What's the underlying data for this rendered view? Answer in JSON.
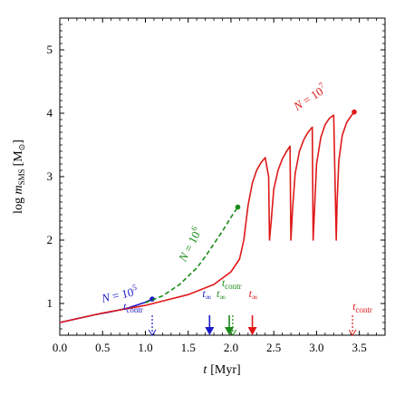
{
  "chart_data": {
    "type": "line",
    "xlabel_var": "t",
    "xlabel_unit": "[Myr]",
    "ylabel_prefix": "log ",
    "ylabel_var": "m",
    "ylabel_sub": "SMS",
    "ylabel_unit": "[M",
    "ylabel_unit_sym": "⊙",
    "ylabel_unit_close": "]",
    "xlim": [
      0.0,
      3.8
    ],
    "ylim": [
      0.5,
      5.5
    ],
    "xticks": [
      "0.0",
      "0.5",
      "1.0",
      "1.5",
      "2.0",
      "2.5",
      "3.0",
      "3.5"
    ],
    "xtick_values": [
      0.0,
      0.5,
      1.0,
      1.5,
      2.0,
      2.5,
      3.0,
      3.5
    ],
    "yticks": [
      "1",
      "2",
      "3",
      "4",
      "5"
    ],
    "ytick_values": [
      1,
      2,
      3,
      4,
      5
    ],
    "grid": false,
    "legend": "none",
    "series": [
      {
        "name": "N = 10^5",
        "label_N": "N",
        "label_eq": " = 10",
        "label_exp": "5",
        "color": "#1a1ac8",
        "style": "solid",
        "endpoint": [
          1.08,
          1.07
        ],
        "x": [
          0.0,
          0.2,
          0.4,
          0.6,
          0.8,
          1.0,
          1.08
        ],
        "y": [
          0.7,
          0.76,
          0.82,
          0.87,
          0.93,
          1.02,
          1.07
        ]
      },
      {
        "name": "N = 10^6",
        "label_N": "N",
        "label_eq": " = 10",
        "label_exp": "6",
        "color": "#1a8a1a",
        "style": "dashed",
        "endpoint": [
          2.08,
          2.52
        ],
        "x": [
          1.0,
          1.2,
          1.4,
          1.6,
          1.7,
          1.8,
          1.9,
          2.0,
          2.08
        ],
        "y": [
          1.01,
          1.12,
          1.3,
          1.56,
          1.74,
          1.94,
          2.14,
          2.36,
          2.52
        ]
      },
      {
        "name": "N = 10^7",
        "label_N": "N",
        "label_eq": " = 10",
        "label_exp": "7",
        "color": "#e01818",
        "style": "solid",
        "endpoint": [
          3.44,
          4.02
        ],
        "x": [
          0.0,
          0.5,
          1.0,
          1.5,
          1.8,
          2.0,
          2.1,
          2.15,
          2.2,
          2.25,
          2.3,
          2.35,
          2.4,
          2.44,
          2.45,
          2.47,
          2.5,
          2.55,
          2.6,
          2.65,
          2.69,
          2.7,
          2.72,
          2.75,
          2.8,
          2.85,
          2.9,
          2.95,
          2.96,
          2.98,
          3.0,
          3.05,
          3.1,
          3.15,
          3.2,
          3.23,
          3.24,
          3.26,
          3.3,
          3.35,
          3.4,
          3.44
        ],
        "y": [
          0.7,
          0.85,
          0.97,
          1.14,
          1.3,
          1.5,
          1.7,
          2.0,
          2.55,
          2.9,
          3.1,
          3.22,
          3.3,
          3.0,
          2.0,
          2.3,
          2.8,
          3.1,
          3.28,
          3.4,
          3.48,
          2.0,
          2.5,
          3.05,
          3.4,
          3.58,
          3.7,
          3.78,
          2.0,
          2.6,
          3.2,
          3.62,
          3.82,
          3.92,
          3.97,
          2.0,
          2.6,
          3.25,
          3.65,
          3.85,
          3.95,
          4.02
        ]
      }
    ],
    "annotations": [
      {
        "text_main": "t",
        "text_sub": "contr",
        "color": "#1a1ac8",
        "x": 1.08,
        "arrow": "dashed-open",
        "label_dx": -32,
        "label_dy": -6
      },
      {
        "text_main": "t",
        "text_sub": "∞",
        "color": "#1a1ac8",
        "x": 1.75,
        "arrow": "solid",
        "label_dx": -8,
        "label_dy": -20
      },
      {
        "text_main": "t",
        "text_sub": "∞",
        "color": "#1a8a1a",
        "x": 1.98,
        "arrow": "solid",
        "label_dx": -14,
        "label_dy": -20
      },
      {
        "text_main": "t",
        "text_sub": "contr",
        "color": "#1a8a1a",
        "x": 2.02,
        "arrow": "dashed-open",
        "label_dx": -12,
        "label_dy": -32
      },
      {
        "text_main": "t",
        "text_sub": "∞",
        "color": "#e01818",
        "x": 2.25,
        "arrow": "solid",
        "label_dx": -4,
        "label_dy": -20
      },
      {
        "text_main": "t",
        "text_sub": "contr",
        "color": "#e01818",
        "x": 3.42,
        "arrow": "dashed-open",
        "label_dx": 0,
        "label_dy": -6
      }
    ]
  }
}
